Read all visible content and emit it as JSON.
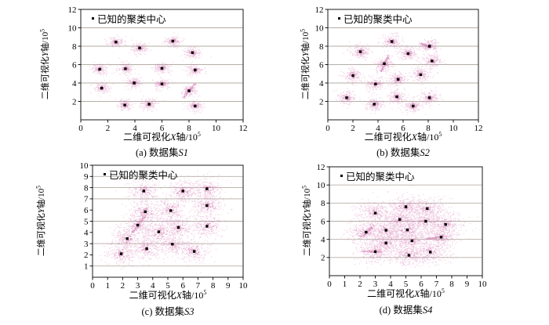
{
  "colors": {
    "point": "#cc5fa6",
    "center": "#000000",
    "grid": "#b6aea6",
    "frame": "#1a1a1a",
    "background": "#ffffff"
  },
  "chart_data": [
    {
      "type": "scatter",
      "panel": "a",
      "caption_prefix": "(a) 数据集",
      "caption_var": "S1",
      "legend": "已知的聚类中心",
      "xlabel": {
        "prefix": "二维可视化",
        "var": "X",
        "suffix": "轴/10",
        "sup": "5"
      },
      "ylabel": {
        "prefix": "二维可视化",
        "var": "Y",
        "suffix": "轴/10",
        "sup": "5"
      },
      "xlim": [
        0,
        12
      ],
      "ylim": [
        0,
        12
      ],
      "xticks": [
        0,
        2,
        4,
        6,
        8,
        10,
        12
      ],
      "yticks": [
        2,
        4,
        6,
        8,
        10,
        12
      ],
      "grid_y": [
        2,
        4,
        6,
        8,
        10
      ],
      "cluster_std": 0.3,
      "points_per_cluster": 150,
      "seed": 11,
      "centers": [
        [
          2.6,
          8.45
        ],
        [
          4.35,
          7.8
        ],
        [
          6.8,
          8.55
        ],
        [
          8.25,
          7.3
        ],
        [
          1.4,
          5.5
        ],
        [
          3.3,
          5.55
        ],
        [
          6.0,
          5.6
        ],
        [
          8.45,
          5.4
        ],
        [
          1.55,
          3.45
        ],
        [
          3.95,
          4.0
        ],
        [
          6.0,
          3.9
        ],
        [
          8.0,
          3.15
        ],
        [
          3.25,
          1.6
        ],
        [
          5.05,
          1.7
        ],
        [
          8.45,
          1.5
        ]
      ],
      "streaks": [
        [
          7.55,
          2.4,
          8.45,
          3.95
        ]
      ]
    },
    {
      "type": "scatter",
      "panel": "b",
      "caption_prefix": "(b) 数据集",
      "caption_var": "S2",
      "legend": "已知的聚类中心",
      "xlabel": {
        "prefix": "二维可视化",
        "var": "X",
        "suffix": "轴/10",
        "sup": "5"
      },
      "ylabel": {
        "prefix": "二维可视化",
        "var": "Y",
        "suffix": "轴/10",
        "sup": "5"
      },
      "xlim": [
        0,
        12
      ],
      "ylim": [
        0,
        12
      ],
      "xticks": [
        0,
        2,
        4,
        6,
        8,
        10,
        12
      ],
      "yticks": [
        2,
        4,
        6,
        8,
        10,
        12
      ],
      "grid_y": [
        2,
        4,
        6,
        8,
        10
      ],
      "cluster_std": 0.38,
      "points_per_cluster": 170,
      "seed": 22,
      "centers": [
        [
          5.1,
          8.5
        ],
        [
          8.1,
          8.0
        ],
        [
          2.6,
          7.4
        ],
        [
          6.4,
          7.2
        ],
        [
          8.3,
          6.4
        ],
        [
          4.5,
          6.1
        ],
        [
          2.0,
          4.8
        ],
        [
          7.4,
          4.9
        ],
        [
          5.6,
          4.4
        ],
        [
          3.8,
          3.9
        ],
        [
          1.5,
          2.4
        ],
        [
          5.5,
          2.5
        ],
        [
          8.1,
          2.4
        ],
        [
          3.7,
          1.7
        ],
        [
          6.8,
          1.5
        ]
      ],
      "streaks": [
        [
          4.25,
          5.3,
          4.85,
          7.05
        ],
        [
          7.35,
          8.3,
          8.15,
          7.95
        ]
      ]
    },
    {
      "type": "scatter",
      "panel": "c",
      "caption_prefix": "(c) 数据集",
      "caption_var": "S3",
      "legend": "已知的聚类中心",
      "xlabel": {
        "prefix": "二维可视化",
        "var": "X",
        "suffix": "轴/10",
        "sup": "5"
      },
      "ylabel": {
        "prefix": "二维可视化",
        "var": "Y",
        "suffix": "轴/10",
        "sup": "5"
      },
      "xlim": [
        0,
        10
      ],
      "ylim": [
        0,
        10
      ],
      "xticks": [
        0,
        1,
        2,
        3,
        4,
        5,
        6,
        7,
        8,
        9,
        10
      ],
      "yticks": [
        1,
        2,
        3,
        4,
        5,
        6,
        7,
        8,
        9,
        10
      ],
      "grid_y": [
        1,
        3,
        5,
        7,
        8,
        9
      ],
      "cluster_std": 0.52,
      "points_per_cluster": 230,
      "seed": 33,
      "centers": [
        [
          3.4,
          7.7
        ],
        [
          6.0,
          7.7
        ],
        [
          7.6,
          7.9
        ],
        [
          7.6,
          6.4
        ],
        [
          3.5,
          5.85
        ],
        [
          5.2,
          5.95
        ],
        [
          3.0,
          4.65
        ],
        [
          4.4,
          4.05
        ],
        [
          5.7,
          4.45
        ],
        [
          7.6,
          4.55
        ],
        [
          2.3,
          3.45
        ],
        [
          3.6,
          2.55
        ],
        [
          5.3,
          2.95
        ],
        [
          1.9,
          2.1
        ],
        [
          6.75,
          2.3
        ]
      ],
      "streaks": [
        [
          2.6,
          3.95,
          3.55,
          5.55
        ]
      ]
    },
    {
      "type": "scatter",
      "panel": "d",
      "caption_prefix": "(d) 数据集",
      "caption_var": "S4",
      "legend": "已知的聚类中心",
      "xlabel": {
        "prefix": "二维可视化",
        "var": "X",
        "suffix": "轴/10",
        "sup": "5"
      },
      "ylabel": {
        "prefix": "二维可视化",
        "var": "Y",
        "suffix": "轴/10",
        "sup": "5"
      },
      "xlim": [
        0,
        10
      ],
      "ylim": [
        0,
        12
      ],
      "xticks": [
        0,
        1,
        2,
        3,
        4,
        5,
        6,
        7,
        8,
        9,
        10
      ],
      "yticks": [
        2,
        4,
        6,
        8,
        10,
        12
      ],
      "grid_y": [
        2,
        4,
        6,
        8,
        10
      ],
      "cluster_std": 0.65,
      "points_per_cluster": 280,
      "seed": 44,
      "centers": [
        [
          5.0,
          7.6
        ],
        [
          6.4,
          7.4
        ],
        [
          3.0,
          6.9
        ],
        [
          4.6,
          6.2
        ],
        [
          6.3,
          6.0
        ],
        [
          7.6,
          5.65
        ],
        [
          2.4,
          4.8
        ],
        [
          3.7,
          5.0
        ],
        [
          5.1,
          5.05
        ],
        [
          7.3,
          4.25
        ],
        [
          5.4,
          3.85
        ],
        [
          3.7,
          3.6
        ],
        [
          3.0,
          2.65
        ],
        [
          6.6,
          2.6
        ],
        [
          5.2,
          2.25
        ]
      ],
      "streaks": [
        [
          2.05,
          2.7,
          3.35,
          2.62
        ],
        [
          2.1,
          4.25,
          2.9,
          5.55
        ],
        [
          6.3,
          4.05,
          7.35,
          4.3
        ]
      ]
    }
  ]
}
